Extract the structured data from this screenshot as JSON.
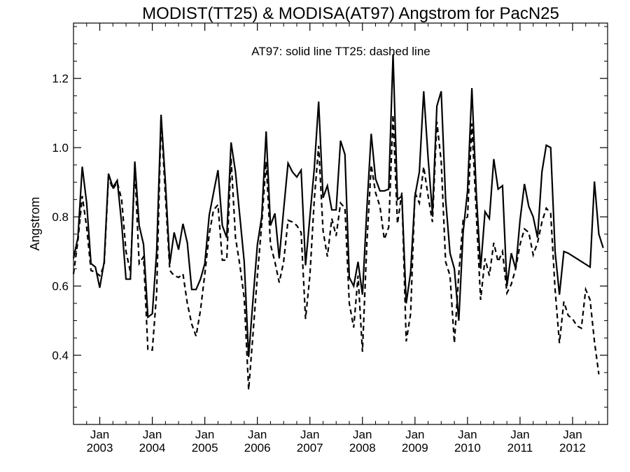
{
  "chart_data": {
    "type": "line",
    "title": "MODIST(TT25) & MODISA(AT97)  Angstrom for PacN25",
    "annotation": "AT97: solid line   TT25: dashed line",
    "xlabel": "",
    "ylabel": "Angstrom",
    "xlim": [
      "2002-07",
      "2012-09"
    ],
    "ylim": [
      0.2,
      1.36
    ],
    "yticks": [
      0.4,
      0.6,
      0.8,
      1.0,
      1.2
    ],
    "ytick_labels": [
      "0.4",
      "0.6",
      "0.8",
      "1.0",
      "1.2"
    ],
    "xticks": [
      "2003-01",
      "2004-01",
      "2005-01",
      "2006-01",
      "2007-01",
      "2008-01",
      "2009-01",
      "2010-01",
      "2011-01",
      "2012-01"
    ],
    "xtick_month_labels": [
      "Jan",
      "Jan",
      "Jan",
      "Jan",
      "Jan",
      "Jan",
      "Jan",
      "Jan",
      "Jan",
      "Jan"
    ],
    "xtick_year_labels": [
      "2003",
      "2004",
      "2005",
      "2006",
      "2007",
      "2008",
      "2009",
      "2010",
      "2011",
      "2012"
    ],
    "grid": false,
    "series": [
      {
        "name": "AT97",
        "style": "solid",
        "color": "#000000",
        "points": [
          [
            "2002-07",
            0.68
          ],
          [
            "2002-08",
            0.74
          ],
          [
            "2002-09",
            0.945
          ],
          [
            "2002-10",
            0.84
          ],
          [
            "2002-11",
            0.665
          ],
          [
            "2002-12",
            0.655
          ],
          [
            "2003-01",
            0.595
          ],
          [
            "2003-02",
            0.67
          ],
          [
            "2003-03",
            0.925
          ],
          [
            "2003-04",
            0.885
          ],
          [
            "2003-05",
            0.905
          ],
          [
            "2003-06",
            0.78
          ],
          [
            "2003-07",
            0.62
          ],
          [
            "2003-08",
            0.62
          ],
          [
            "2003-09",
            0.96
          ],
          [
            "2003-10",
            0.775
          ],
          [
            "2003-11",
            0.72
          ],
          [
            "2003-12",
            0.51
          ],
          [
            "2004-01",
            0.52
          ],
          [
            "2004-02",
            0.7
          ],
          [
            "2004-03",
            1.095
          ],
          [
            "2004-04",
            0.9
          ],
          [
            "2004-05",
            0.665
          ],
          [
            "2004-06",
            0.755
          ],
          [
            "2004-07",
            0.705
          ],
          [
            "2004-08",
            0.78
          ],
          [
            "2004-09",
            0.725
          ],
          [
            "2004-10",
            0.59
          ],
          [
            "2004-11",
            0.59
          ],
          [
            "2004-12",
            0.62
          ],
          [
            "2005-01",
            0.665
          ],
          [
            "2005-02",
            0.805
          ],
          [
            "2005-03",
            0.87
          ],
          [
            "2005-04",
            0.935
          ],
          [
            "2005-05",
            0.775
          ],
          [
            "2005-06",
            0.74
          ],
          [
            "2005-07",
            1.015
          ],
          [
            "2005-08",
            0.93
          ],
          [
            "2005-09",
            0.8
          ],
          [
            "2005-10",
            0.67
          ],
          [
            "2005-11",
            0.395
          ],
          [
            "2005-12",
            0.56
          ],
          [
            "2006-01",
            0.72
          ],
          [
            "2006-02",
            0.8
          ],
          [
            "2006-03",
            1.047
          ],
          [
            "2006-04",
            0.775
          ],
          [
            "2006-05",
            0.81
          ],
          [
            "2006-06",
            0.68
          ],
          [
            "2006-07",
            0.82
          ],
          [
            "2006-08",
            0.955
          ],
          [
            "2006-09",
            0.93
          ],
          [
            "2006-10",
            0.915
          ],
          [
            "2006-11",
            0.935
          ],
          [
            "2006-12",
            0.66
          ],
          [
            "2007-01",
            0.8
          ],
          [
            "2007-02",
            0.94
          ],
          [
            "2007-03",
            1.133
          ],
          [
            "2007-04",
            0.855
          ],
          [
            "2007-05",
            0.89
          ],
          [
            "2007-06",
            0.82
          ],
          [
            "2007-07",
            0.82
          ],
          [
            "2007-08",
            1.02
          ],
          [
            "2007-09",
            0.98
          ],
          [
            "2007-10",
            0.625
          ],
          [
            "2007-11",
            0.6
          ],
          [
            "2007-12",
            0.67
          ],
          [
            "2008-01",
            0.575
          ],
          [
            "2008-02",
            0.82
          ],
          [
            "2008-03",
            1.04
          ],
          [
            "2008-04",
            0.91
          ],
          [
            "2008-05",
            0.875
          ],
          [
            "2008-06",
            0.875
          ],
          [
            "2008-07",
            0.88
          ],
          [
            "2008-08",
            1.27
          ],
          [
            "2008-09",
            0.85
          ],
          [
            "2008-10",
            0.86
          ],
          [
            "2008-11",
            0.55
          ],
          [
            "2008-12",
            0.64
          ],
          [
            "2009-01",
            0.86
          ],
          [
            "2009-02",
            0.93
          ],
          [
            "2009-03",
            1.163
          ],
          [
            "2009-04",
            0.97
          ],
          [
            "2009-05",
            0.81
          ],
          [
            "2009-06",
            1.12
          ],
          [
            "2009-07",
            1.163
          ],
          [
            "2009-08",
            0.85
          ],
          [
            "2009-09",
            0.695
          ],
          [
            "2009-10",
            0.65
          ],
          [
            "2009-11",
            0.5
          ],
          [
            "2009-12",
            0.755
          ],
          [
            "2010-01",
            0.875
          ],
          [
            "2010-02",
            1.172
          ],
          [
            "2010-03",
            0.87
          ],
          [
            "2010-04",
            0.65
          ],
          [
            "2010-05",
            0.815
          ],
          [
            "2010-06",
            0.795
          ],
          [
            "2010-07",
            0.967
          ],
          [
            "2010-08",
            0.88
          ],
          [
            "2010-09",
            0.89
          ],
          [
            "2010-10",
            0.6
          ],
          [
            "2010-11",
            0.695
          ],
          [
            "2010-12",
            0.65
          ],
          [
            "2011-01",
            0.79
          ],
          [
            "2011-02",
            0.895
          ],
          [
            "2011-03",
            0.83
          ],
          [
            "2011-04",
            0.8
          ],
          [
            "2011-05",
            0.74
          ],
          [
            "2011-06",
            0.93
          ],
          [
            "2011-07",
            1.007
          ],
          [
            "2011-08",
            1.0
          ],
          [
            "2011-09",
            0.7
          ],
          [
            "2011-10",
            0.575
          ],
          [
            "2011-11",
            0.7
          ],
          [
            "2011-12",
            0.695
          ],
          [
            "2012-05",
            0.655
          ],
          [
            "2012-06",
            0.902
          ],
          [
            "2012-07",
            0.75
          ],
          [
            "2012-08",
            0.71
          ]
        ]
      },
      {
        "name": "TT25",
        "style": "dashed",
        "color": "#000000",
        "points": [
          [
            "2002-07",
            0.635
          ],
          [
            "2002-08",
            0.73
          ],
          [
            "2002-09",
            0.86
          ],
          [
            "2002-10",
            0.77
          ],
          [
            "2002-11",
            0.645
          ],
          [
            "2002-12",
            0.64
          ],
          [
            "2003-01",
            0.63
          ],
          [
            "2003-02",
            0.66
          ],
          [
            "2003-03",
            0.915
          ],
          [
            "2003-04",
            0.88
          ],
          [
            "2003-05",
            0.9
          ],
          [
            "2003-06",
            0.85
          ],
          [
            "2003-07",
            0.7
          ],
          [
            "2003-08",
            0.64
          ],
          [
            "2003-09",
            0.94
          ],
          [
            "2003-10",
            0.665
          ],
          [
            "2003-11",
            0.685
          ],
          [
            "2003-12",
            0.415
          ],
          [
            "2004-01",
            0.415
          ],
          [
            "2004-02",
            0.58
          ],
          [
            "2004-03",
            1.085
          ],
          [
            "2004-04",
            0.86
          ],
          [
            "2004-05",
            0.645
          ],
          [
            "2004-06",
            0.63
          ],
          [
            "2004-07",
            0.625
          ],
          [
            "2004-08",
            0.635
          ],
          [
            "2004-09",
            0.55
          ],
          [
            "2004-10",
            0.49
          ],
          [
            "2004-11",
            0.455
          ],
          [
            "2004-12",
            0.53
          ],
          [
            "2005-01",
            0.635
          ],
          [
            "2005-02",
            0.75
          ],
          [
            "2005-03",
            0.82
          ],
          [
            "2005-04",
            0.835
          ],
          [
            "2005-05",
            0.675
          ],
          [
            "2005-06",
            0.675
          ],
          [
            "2005-07",
            0.97
          ],
          [
            "2005-08",
            0.74
          ],
          [
            "2005-09",
            0.66
          ],
          [
            "2005-10",
            0.565
          ],
          [
            "2005-11",
            0.3
          ],
          [
            "2005-12",
            0.46
          ],
          [
            "2006-01",
            0.63
          ],
          [
            "2006-02",
            0.78
          ],
          [
            "2006-03",
            0.96
          ],
          [
            "2006-04",
            0.72
          ],
          [
            "2006-05",
            0.67
          ],
          [
            "2006-06",
            0.61
          ],
          [
            "2006-07",
            0.67
          ],
          [
            "2006-08",
            0.79
          ],
          [
            "2006-09",
            0.785
          ],
          [
            "2006-10",
            0.775
          ],
          [
            "2006-11",
            0.755
          ],
          [
            "2006-12",
            0.505
          ],
          [
            "2007-01",
            0.63
          ],
          [
            "2007-02",
            0.85
          ],
          [
            "2007-03",
            1.005
          ],
          [
            "2007-04",
            0.76
          ],
          [
            "2007-05",
            0.685
          ],
          [
            "2007-06",
            0.795
          ],
          [
            "2007-07",
            0.745
          ],
          [
            "2007-08",
            0.84
          ],
          [
            "2007-09",
            0.825
          ],
          [
            "2007-10",
            0.55
          ],
          [
            "2007-11",
            0.48
          ],
          [
            "2007-12",
            0.63
          ],
          [
            "2008-01",
            0.41
          ],
          [
            "2008-02",
            0.72
          ],
          [
            "2008-03",
            0.95
          ],
          [
            "2008-04",
            0.87
          ],
          [
            "2008-05",
            0.83
          ],
          [
            "2008-06",
            0.735
          ],
          [
            "2008-07",
            0.77
          ],
          [
            "2008-08",
            1.095
          ],
          [
            "2008-09",
            0.78
          ],
          [
            "2008-10",
            0.87
          ],
          [
            "2008-11",
            0.44
          ],
          [
            "2008-12",
            0.52
          ],
          [
            "2009-01",
            0.87
          ],
          [
            "2009-02",
            0.84
          ],
          [
            "2009-03",
            0.945
          ],
          [
            "2009-04",
            0.86
          ],
          [
            "2009-05",
            0.785
          ],
          [
            "2009-06",
            1.075
          ],
          [
            "2009-07",
            0.96
          ],
          [
            "2009-08",
            0.67
          ],
          [
            "2009-09",
            0.63
          ],
          [
            "2009-10",
            0.435
          ],
          [
            "2009-11",
            0.635
          ],
          [
            "2009-12",
            0.79
          ],
          [
            "2010-01",
            0.8
          ],
          [
            "2010-02",
            1.07
          ],
          [
            "2010-03",
            0.81
          ],
          [
            "2010-04",
            0.56
          ],
          [
            "2010-05",
            0.68
          ],
          [
            "2010-06",
            0.63
          ],
          [
            "2010-07",
            0.725
          ],
          [
            "2010-08",
            0.67
          ],
          [
            "2010-09",
            0.7
          ],
          [
            "2010-10",
            0.58
          ],
          [
            "2010-11",
            0.605
          ],
          [
            "2010-12",
            0.65
          ],
          [
            "2011-01",
            0.72
          ],
          [
            "2011-02",
            0.765
          ],
          [
            "2011-03",
            0.755
          ],
          [
            "2011-04",
            0.69
          ],
          [
            "2011-05",
            0.725
          ],
          [
            "2011-06",
            0.785
          ],
          [
            "2011-07",
            0.825
          ],
          [
            "2011-08",
            0.81
          ],
          [
            "2011-09",
            0.59
          ],
          [
            "2011-10",
            0.435
          ],
          [
            "2011-11",
            0.555
          ],
          [
            "2011-12",
            0.515
          ],
          [
            "2012-01",
            0.505
          ],
          [
            "2012-02",
            0.485
          ],
          [
            "2012-03",
            0.478
          ],
          [
            "2012-04",
            0.59
          ],
          [
            "2012-05",
            0.56
          ],
          [
            "2012-06",
            0.44
          ],
          [
            "2012-07",
            0.345
          ]
        ]
      }
    ]
  }
}
